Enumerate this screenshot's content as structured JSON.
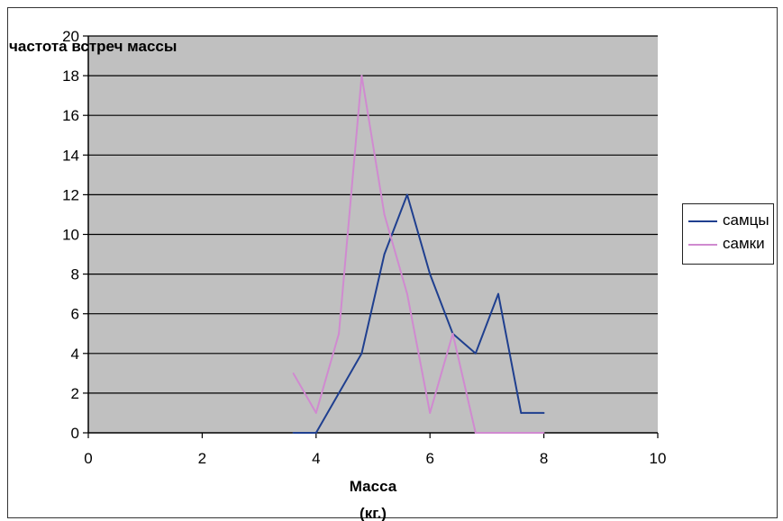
{
  "chart_data": {
    "type": "line",
    "title": "",
    "xlabel": "Масса\n(кг.)",
    "ylabel": "частота встреч массы",
    "xlim": [
      0,
      10
    ],
    "ylim": [
      0,
      20
    ],
    "xticks": [
      0,
      2,
      4,
      6,
      8,
      10
    ],
    "yticks": [
      0,
      2,
      4,
      6,
      8,
      10,
      12,
      14,
      16,
      18,
      20
    ],
    "grid": "horizontal",
    "legend_position": "right",
    "plot_background": "#c0c0c0",
    "series": [
      {
        "name": "самцы",
        "color": "#1f3f8f",
        "x": [
          3.6,
          3.8,
          4.0,
          4.4,
          4.8,
          5.2,
          5.6,
          6.0,
          6.4,
          6.8,
          7.2,
          7.6,
          8.0
        ],
        "values": [
          0,
          0,
          0,
          2,
          4,
          9,
          12,
          8,
          5,
          4,
          7,
          1,
          1
        ]
      },
      {
        "name": "самки",
        "color": "#d08ad0",
        "x": [
          3.6,
          3.8,
          4.0,
          4.4,
          4.8,
          5.2,
          5.6,
          6.0,
          6.4,
          6.8,
          7.2,
          7.6,
          8.0
        ],
        "values": [
          3,
          2,
          1,
          5,
          18,
          11,
          7,
          1,
          5,
          0,
          0,
          0,
          0
        ]
      }
    ]
  }
}
